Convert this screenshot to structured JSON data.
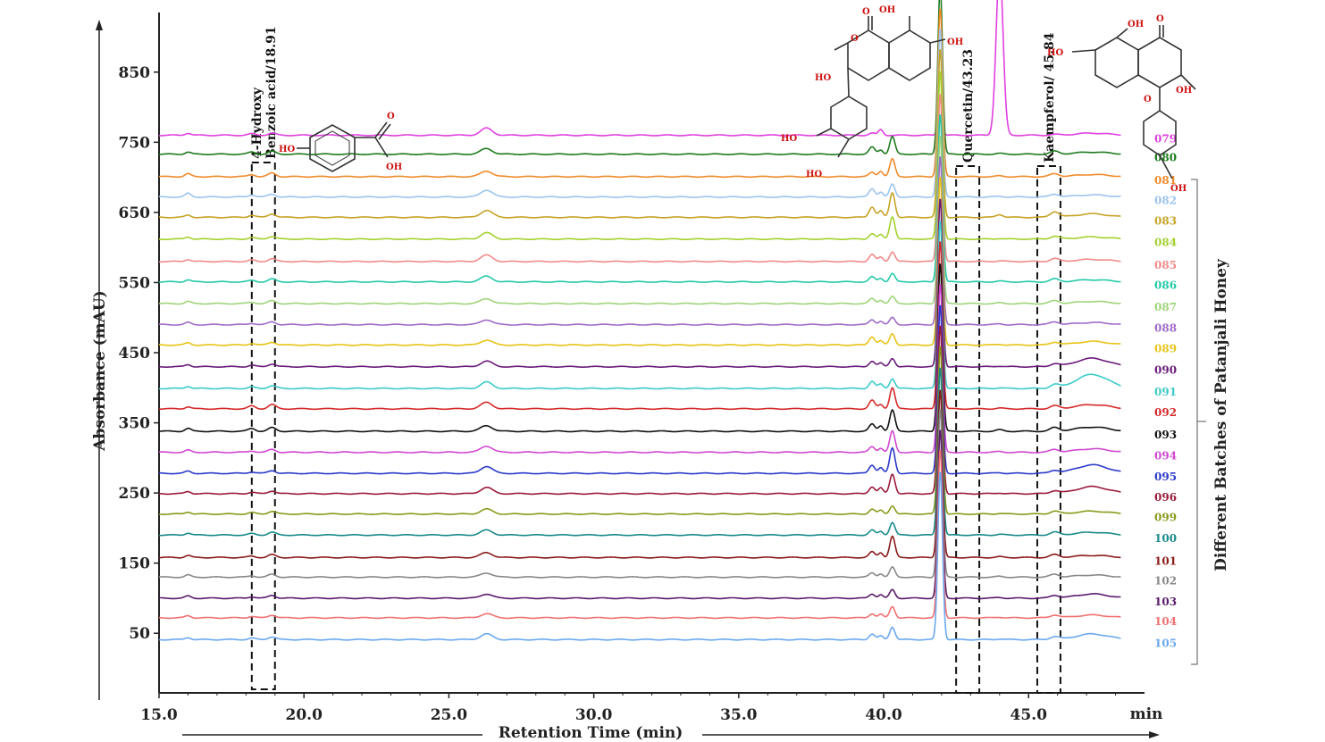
{
  "chart_data": {
    "type": "line",
    "subtype": "stacked-chromatograms",
    "ylabel": "Absorbance (mAU)",
    "xlabel": "Retention Time (min)",
    "x_unit_label": "min",
    "group_label": "Different Batches of Patanjali Honey",
    "xlim": [
      15.0,
      49.0
    ],
    "ylim": [
      -35,
      935
    ],
    "x_ticks": [
      "15.0",
      "20.0",
      "25.0",
      "30.0",
      "35.0",
      "40.0",
      "45.0"
    ],
    "x_tick_values": [
      15,
      20,
      25,
      30,
      35,
      40,
      45
    ],
    "y_ticks": [
      "50",
      "150",
      "250",
      "350",
      "450",
      "550",
      "650",
      "750",
      "850"
    ],
    "y_tick_values": [
      50,
      150,
      250,
      350,
      450,
      550,
      650,
      750,
      850
    ],
    "grid": false,
    "annotations": [
      {
        "lines": [
          "4-Hydroxy",
          "Benzoic acid/18.91"
        ],
        "x_range": [
          18.2,
          19.0
        ]
      },
      {
        "lines": [
          "Quercetin/43.23"
        ],
        "x_range": [
          42.5,
          43.3
        ]
      },
      {
        "lines": [
          "Kaempferol/ 45.84"
        ],
        "x_range": [
          45.3,
          46.1
        ]
      }
    ],
    "molecule_labels": {
      "hydroxybenzoic": [
        "HO",
        "O",
        "OH"
      ],
      "quercetin": [
        "OH",
        "OH",
        "HO",
        "O",
        "HO",
        "HO",
        "O"
      ],
      "kaempferol": [
        "OH",
        "HO",
        "O",
        "OH",
        "O",
        "OH"
      ]
    },
    "common_peaks": [
      {
        "x": 16.0,
        "w": 0.1
      },
      {
        "x": 18.2,
        "w": 0.12
      },
      {
        "x": 18.9,
        "w": 0.13
      },
      {
        "x": 26.3,
        "w": 0.2
      },
      {
        "x": 39.6,
        "w": 0.1
      },
      {
        "x": 39.9,
        "w": 0.08
      },
      {
        "x": 40.3,
        "w": 0.09
      },
      {
        "x": 41.95,
        "w": 0.08
      },
      {
        "x": 44.0,
        "w": 0.12
      },
      {
        "x": 45.9,
        "w": 0.15
      },
      {
        "x": 47.2,
        "w": 0.55
      }
    ],
    "series": [
      {
        "name": "079",
        "color": "#e040e0",
        "baseline": 760,
        "heights": [
          3,
          2,
          3,
          10,
          3,
          8,
          0,
          25,
          240,
          1,
          3
        ]
      },
      {
        "name": "080",
        "color": "#1e7a1e",
        "baseline": 733,
        "heights": [
          3,
          3,
          4,
          8,
          10,
          6,
          25,
          240,
          1,
          4,
          3
        ]
      },
      {
        "name": "081",
        "color": "#ef8a2a",
        "baseline": 701,
        "heights": [
          4,
          3,
          5,
          8,
          6,
          8,
          25,
          240,
          1,
          4,
          3
        ]
      },
      {
        "name": "082",
        "color": "#9cc4ee",
        "baseline": 672,
        "heights": [
          5,
          3,
          4,
          10,
          12,
          7,
          18,
          240,
          1,
          4,
          3
        ]
      },
      {
        "name": "083",
        "color": "#c6a326",
        "baseline": 643,
        "heights": [
          3,
          3,
          5,
          10,
          15,
          9,
          35,
          240,
          4,
          8,
          5
        ]
      },
      {
        "name": "084",
        "color": "#a4d12e",
        "baseline": 612,
        "heights": [
          3,
          2,
          4,
          9,
          8,
          6,
          32,
          240,
          1,
          4,
          3
        ]
      },
      {
        "name": "085",
        "color": "#f08a8a",
        "baseline": 580,
        "heights": [
          3,
          2,
          4,
          9,
          10,
          6,
          14,
          240,
          1,
          4,
          3
        ]
      },
      {
        "name": "086",
        "color": "#24c8a8",
        "baseline": 551,
        "heights": [
          3,
          2,
          4,
          8,
          7,
          5,
          12,
          240,
          1,
          4,
          3
        ]
      },
      {
        "name": "087",
        "color": "#9ed47a",
        "baseline": 520,
        "heights": [
          3,
          2,
          4,
          7,
          7,
          5,
          10,
          240,
          1,
          4,
          3
        ]
      },
      {
        "name": "088",
        "color": "#a06ac8",
        "baseline": 490,
        "heights": [
          3,
          2,
          4,
          7,
          7,
          5,
          10,
          240,
          1,
          4,
          3
        ]
      },
      {
        "name": "089",
        "color": "#e8c418",
        "baseline": 461,
        "heights": [
          3,
          2,
          4,
          7,
          12,
          6,
          16,
          240,
          1,
          4,
          5
        ]
      },
      {
        "name": "090",
        "color": "#6a1a7a",
        "baseline": 430,
        "heights": [
          3,
          2,
          4,
          8,
          8,
          5,
          12,
          240,
          1,
          4,
          12
        ]
      },
      {
        "name": "091",
        "color": "#3ccaca",
        "baseline": 399,
        "heights": [
          3,
          2,
          4,
          9,
          10,
          6,
          14,
          240,
          1,
          5,
          20
        ]
      },
      {
        "name": "092",
        "color": "#d62a2a",
        "baseline": 370,
        "heights": [
          3,
          4,
          6,
          9,
          12,
          6,
          30,
          240,
          1,
          4,
          6
        ]
      },
      {
        "name": "093",
        "color": "#111111",
        "baseline": 338,
        "heights": [
          4,
          4,
          5,
          8,
          10,
          8,
          30,
          240,
          2,
          5,
          6
        ]
      },
      {
        "name": "094",
        "color": "#d048d0",
        "baseline": 308,
        "heights": [
          3,
          2,
          4,
          9,
          8,
          6,
          30,
          240,
          1,
          4,
          5
        ]
      },
      {
        "name": "095",
        "color": "#2a3ac8",
        "baseline": 278,
        "heights": [
          3,
          2,
          4,
          10,
          12,
          8,
          36,
          240,
          1,
          4,
          12
        ]
      },
      {
        "name": "096",
        "color": "#9a1a3a",
        "baseline": 249,
        "heights": [
          3,
          2,
          4,
          9,
          10,
          8,
          28,
          240,
          1,
          4,
          10
        ]
      },
      {
        "name": "099",
        "color": "#8a9a1a",
        "baseline": 220,
        "heights": [
          3,
          2,
          4,
          7,
          7,
          5,
          12,
          240,
          1,
          4,
          4
        ]
      },
      {
        "name": "100",
        "color": "#1a8a8a",
        "baseline": 190,
        "heights": [
          3,
          2,
          4,
          7,
          7,
          5,
          18,
          240,
          1,
          4,
          4
        ]
      },
      {
        "name": "101",
        "color": "#8a1a1a",
        "baseline": 158,
        "heights": [
          3,
          2,
          4,
          7,
          8,
          7,
          30,
          240,
          1,
          4,
          3
        ]
      },
      {
        "name": "102",
        "color": "#888888",
        "baseline": 130,
        "heights": [
          3,
          2,
          4,
          6,
          6,
          5,
          14,
          240,
          1,
          4,
          3
        ]
      },
      {
        "name": "103",
        "color": "#5a1a6a",
        "baseline": 100,
        "heights": [
          3,
          2,
          4,
          6,
          6,
          5,
          12,
          240,
          1,
          4,
          6
        ]
      },
      {
        "name": "104",
        "color": "#f07070",
        "baseline": 72,
        "heights": [
          3,
          2,
          4,
          6,
          6,
          5,
          16,
          240,
          1,
          4,
          4
        ]
      },
      {
        "name": "105",
        "color": "#6aa8ee",
        "baseline": 41,
        "heights": [
          3,
          2,
          4,
          8,
          8,
          5,
          18,
          240,
          1,
          4,
          8
        ]
      }
    ]
  }
}
